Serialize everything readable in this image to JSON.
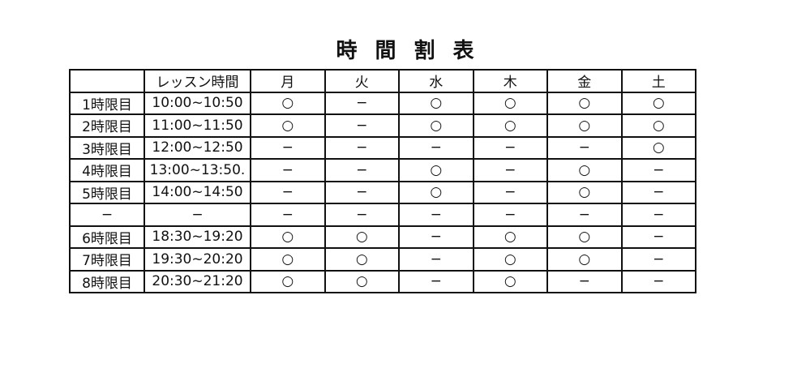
{
  "title": "時間割表",
  "headers": [
    "",
    "レッスン時間",
    "月",
    "火",
    "水",
    "木",
    "金",
    "土"
  ],
  "rows": [
    [
      "1時限目",
      "10:00~10:50",
      "○",
      "−",
      "○",
      "○",
      "○",
      "○"
    ],
    [
      "2時限目",
      "11:00~11:50",
      "○",
      "−",
      "○",
      "○",
      "○",
      "○"
    ],
    [
      "3時限目",
      "12:00~12:50",
      "−",
      "−",
      "−",
      "−",
      "−",
      "○"
    ],
    [
      "4時限目",
      "13:00~13:50.",
      "−",
      "−",
      "○",
      "−",
      "○",
      "−"
    ],
    [
      "5時限目",
      "14:00~14:50",
      "−",
      "−",
      "○",
      "−",
      "○",
      "−"
    ],
    [
      "−",
      "−",
      "−",
      "−",
      "−",
      "−",
      "−",
      "−"
    ],
    [
      "6時限目",
      "18:30~19:20",
      "○",
      "○",
      "−",
      "○",
      "○",
      "−"
    ],
    [
      "7時限目",
      "19:30~20:20",
      "○",
      "○",
      "−",
      "○",
      "○",
      "−"
    ],
    [
      "8時限目",
      "20:30~21:20",
      "○",
      "○",
      "−",
      "○",
      "−",
      "−"
    ]
  ]
}
